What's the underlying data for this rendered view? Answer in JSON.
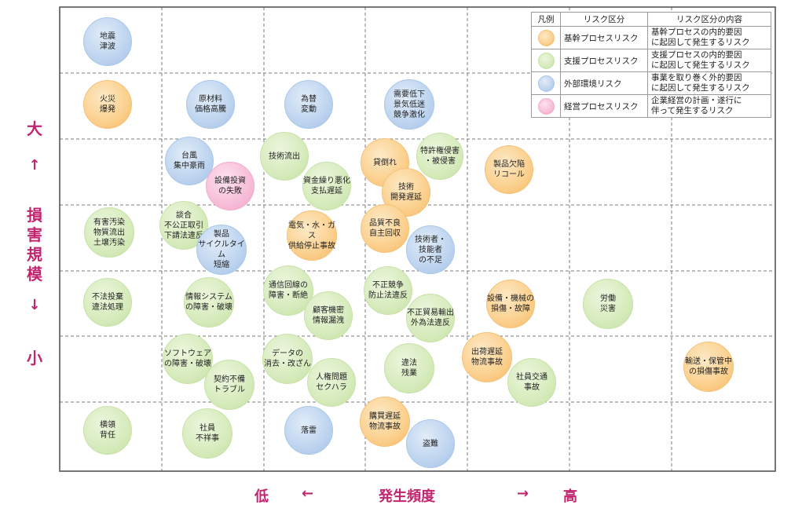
{
  "y_axis": {
    "label_top": "大",
    "arrow_up": "↑",
    "title": "損害規模",
    "arrow_down": "↓",
    "label_bottom": "小"
  },
  "x_axis": {
    "label_low": "低",
    "arrow_left": "←",
    "title": "発生頻度",
    "arrow_right": "→",
    "label_high": "高"
  },
  "legend": {
    "header": {
      "col1": "凡例",
      "col2": "リスク区分",
      "col3": "リスク区分の内容"
    },
    "rows": [
      {
        "color": "orange",
        "name": "基幹プロセスリスク",
        "desc": "基幹プロセスの内的要因\nに起因して発生するリスク"
      },
      {
        "color": "green",
        "name": "支援プロセスリスク",
        "desc": "支援プロセスの内的要因\nに起因して発生するリスク"
      },
      {
        "color": "blue",
        "name": "外部環境リスク",
        "desc": "事業を取り巻く外的要因\nに起因して発生するリスク"
      },
      {
        "color": "pink",
        "name": "経営プロセスリスク",
        "desc": "企業経営の計画・遂行に\n伴って発生するリスク"
      }
    ]
  },
  "risks": [
    {
      "label": "地震\n津波",
      "color": "blue",
      "frequency": 1,
      "impact": 7
    },
    {
      "label": "火災\n爆発",
      "color": "orange",
      "frequency": 1,
      "impact": 6
    },
    {
      "label": "原材料\n価格高騰",
      "color": "blue",
      "frequency": 2,
      "impact": 6
    },
    {
      "label": "為替\n変動",
      "color": "blue",
      "frequency": 3,
      "impact": 6
    },
    {
      "label": "需要低下\n景気低迷\n競争激化",
      "color": "blue",
      "frequency": 4,
      "impact": 6
    },
    {
      "label": "台風\n集中豪雨",
      "color": "blue",
      "frequency": 2,
      "impact": 5
    },
    {
      "label": "設備投資\nの失敗",
      "color": "pink",
      "frequency": 2,
      "impact": 5
    },
    {
      "label": "技術流出",
      "color": "green",
      "frequency": 3,
      "impact": 5
    },
    {
      "label": "資金繰り悪化\n支払遅延",
      "color": "green",
      "frequency": 3,
      "impact": 5
    },
    {
      "label": "貸倒れ",
      "color": "orange",
      "frequency": 4,
      "impact": 5
    },
    {
      "label": "技術\n開発遅延",
      "color": "orange",
      "frequency": 4,
      "impact": 5
    },
    {
      "label": "特許権侵害\n・被侵害",
      "color": "green",
      "frequency": 4,
      "impact": 5
    },
    {
      "label": "製品欠陥\nリコール",
      "color": "orange",
      "frequency": 5,
      "impact": 5
    },
    {
      "label": "有害汚染\n物質流出\n土壌汚染",
      "color": "green",
      "frequency": 1,
      "impact": 4
    },
    {
      "label": "談合\n不公正取引\n下請法違反",
      "color": "green",
      "frequency": 2,
      "impact": 4
    },
    {
      "label": "製品\nサイクルタイム\n短縮",
      "color": "blue",
      "frequency": 2,
      "impact": 4
    },
    {
      "label": "電気・水・ガス\n供給停止事故",
      "color": "orange",
      "frequency": 3,
      "impact": 4
    },
    {
      "label": "品質不良\n自主回収",
      "color": "orange",
      "frequency": 4,
      "impact": 4
    },
    {
      "label": "技術者・\n技能者\nの不足",
      "color": "blue",
      "frequency": 4,
      "impact": 4
    },
    {
      "label": "不法投棄\n違法処理",
      "color": "green",
      "frequency": 1,
      "impact": 3
    },
    {
      "label": "情報システム\nの障害・破壊",
      "color": "green",
      "frequency": 2,
      "impact": 3
    },
    {
      "label": "通信回線の\n障害・断絶",
      "color": "green",
      "frequency": 3,
      "impact": 3
    },
    {
      "label": "顧客機密\n情報漏洩",
      "color": "green",
      "frequency": 3,
      "impact": 3
    },
    {
      "label": "不正競争\n防止法違反",
      "color": "green",
      "frequency": 4,
      "impact": 3
    },
    {
      "label": "不正貿易輸出\n外為法違反",
      "color": "green",
      "frequency": 4,
      "impact": 3
    },
    {
      "label": "設備・機械の\n損傷・故障",
      "color": "orange",
      "frequency": 5,
      "impact": 3
    },
    {
      "label": "労働\n災害",
      "color": "green",
      "frequency": 6,
      "impact": 3
    },
    {
      "label": "ソフトウェア\nの障害・破壊",
      "color": "green",
      "frequency": 2,
      "impact": 2
    },
    {
      "label": "契約不備\nトラブル",
      "color": "green",
      "frequency": 2,
      "impact": 2
    },
    {
      "label": "データの\n消去・改ざん",
      "color": "green",
      "frequency": 3,
      "impact": 2
    },
    {
      "label": "人権問題\nセクハラ",
      "color": "green",
      "frequency": 3,
      "impact": 2
    },
    {
      "label": "違法\n残業",
      "color": "green",
      "frequency": 4,
      "impact": 2
    },
    {
      "label": "出荷遅延\n物流事故",
      "color": "orange",
      "frequency": 5,
      "impact": 2
    },
    {
      "label": "社員交通\n事故",
      "color": "green",
      "frequency": 5,
      "impact": 2
    },
    {
      "label": "輸送・保管中\nの損傷事故",
      "color": "orange",
      "frequency": 7,
      "impact": 2
    },
    {
      "label": "横領\n背任",
      "color": "green",
      "frequency": 1,
      "impact": 1
    },
    {
      "label": "社員\n不祥事",
      "color": "green",
      "frequency": 2,
      "impact": 1
    },
    {
      "label": "落雷",
      "color": "blue",
      "frequency": 3,
      "impact": 1
    },
    {
      "label": "購買遅延\n物流事故",
      "color": "orange",
      "frequency": 4,
      "impact": 1
    },
    {
      "label": "盗難",
      "color": "blue",
      "frequency": 4,
      "impact": 1
    }
  ]
}
